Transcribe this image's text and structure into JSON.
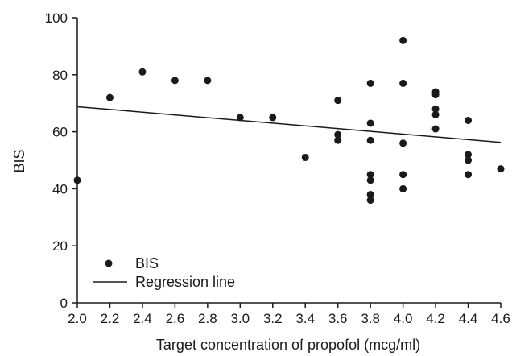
{
  "chart_data": {
    "type": "scatter",
    "xlabel": "Target concentration of propofol (mcg/ml)",
    "ylabel": "BIS",
    "xlim": [
      2.0,
      4.6
    ],
    "ylim": [
      0,
      100
    ],
    "xticks": [
      "2.0",
      "2.2",
      "2.4",
      "2.6",
      "2.8",
      "3.0",
      "3.2",
      "3.4",
      "3.6",
      "3.8",
      "4.0",
      "4.2",
      "4.4",
      "4.6"
    ],
    "yticks": [
      "0",
      "20",
      "40",
      "60",
      "80",
      "100"
    ],
    "grid": false,
    "legend_position": "bottom-left",
    "series": [
      {
        "name": "BIS",
        "type": "scatter",
        "color": "#1a1a1a",
        "points": [
          [
            2.0,
            43
          ],
          [
            2.2,
            72
          ],
          [
            2.4,
            81
          ],
          [
            2.6,
            78
          ],
          [
            2.8,
            78
          ],
          [
            3.0,
            65
          ],
          [
            3.2,
            65
          ],
          [
            3.4,
            51
          ],
          [
            3.6,
            71
          ],
          [
            3.6,
            59
          ],
          [
            3.6,
            57
          ],
          [
            3.8,
            77
          ],
          [
            3.8,
            63
          ],
          [
            3.8,
            57
          ],
          [
            3.8,
            45
          ],
          [
            3.8,
            43
          ],
          [
            3.8,
            38
          ],
          [
            3.8,
            36
          ],
          [
            4.0,
            92
          ],
          [
            4.0,
            77
          ],
          [
            4.0,
            56
          ],
          [
            4.0,
            45
          ],
          [
            4.0,
            40
          ],
          [
            4.2,
            74
          ],
          [
            4.2,
            73
          ],
          [
            4.2,
            68
          ],
          [
            4.2,
            66
          ],
          [
            4.2,
            61
          ],
          [
            4.4,
            64
          ],
          [
            4.4,
            52
          ],
          [
            4.4,
            50
          ],
          [
            4.4,
            45
          ],
          [
            4.6,
            47
          ]
        ]
      },
      {
        "name": "Regression line",
        "type": "line",
        "color": "#1a1a1a",
        "points": [
          [
            2.0,
            68.8
          ],
          [
            4.6,
            56.3
          ]
        ]
      }
    ]
  }
}
